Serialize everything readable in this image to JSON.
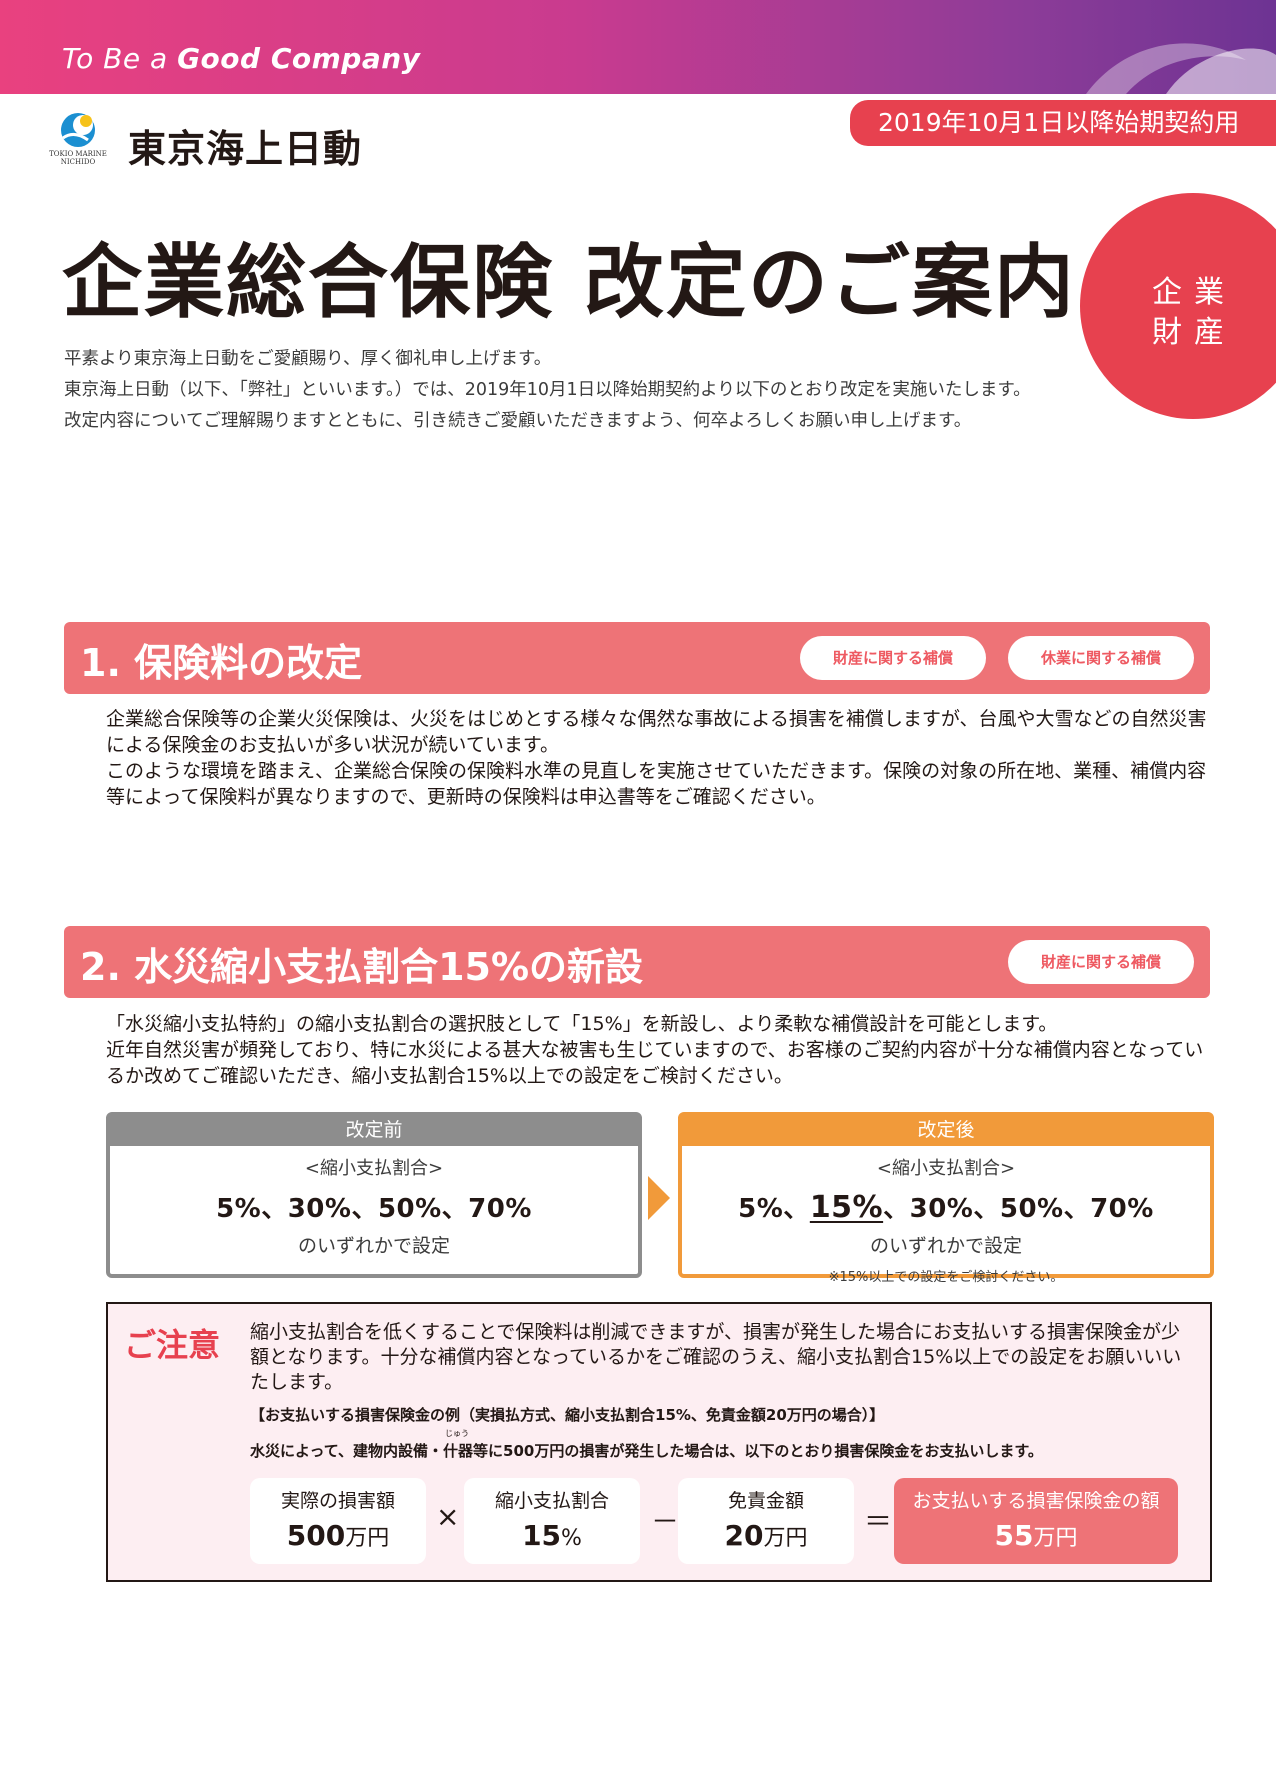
{
  "header": {
    "tagline_prefix": "To Be a ",
    "tagline_bold": "Good Company",
    "brand_name": "東京海上日動",
    "logo_caption_line1": "TOKIO MARINE",
    "logo_caption_line2": "NICHIDO",
    "date_tab": "2019年10月1日以降始期契約用"
  },
  "title": "企業総合保険 改定のご案内",
  "category": {
    "line1": "企業",
    "line2": "財産"
  },
  "intro": [
    "平素より東京海上日動をご愛顧賜り、厚く御礼申し上げます。",
    "東京海上日動（以下、「弊社」といいます。）では、2019年10月1日以降始期契約より以下のとおり改定を実施いたします。",
    "改定内容についてご理解賜りますとともに、引き続きご愛顧いただきますよう、何卒よろしくお願い申し上げます。"
  ],
  "section1": {
    "title": "1. 保険料の改定",
    "tags": [
      "財産に関する補償",
      "休業に関する補償"
    ],
    "body_p1": "企業総合保険等の企業火災保険は、火災をはじめとする様々な偶然な事故による損害を補償しますが、台風や大雪などの自然災害による保険金のお支払いが多い状況が続いています。",
    "body_p2": "このような環境を踏まえ、企業総合保険の保険料水準の見直しを実施させていただきます。保険の対象の所在地、業種、補償内容等によって保険料が異なりますので、更新時の保険料は申込書等をご確認ください。"
  },
  "section2": {
    "title": "2. 水災縮小支払割合15%の新設",
    "tags": [
      "財産に関する補償"
    ],
    "body_p1": "「水災縮小支払特約」の縮小支払割合の選択肢として「15%」を新設し、より柔軟な補償設計を可能とします。",
    "body_p2": "近年自然災害が頻発しており、特に水災による甚大な被害も生じていますので、お客様のご契約内容が十分な補償内容となっているか改めてご確認いただき、縮小支払割合15%以上での設定をご検討ください。"
  },
  "compare": {
    "before": {
      "header": "改定前",
      "sub": "<縮小支払割合>",
      "values": "5%、30%、50%、70%",
      "tail": "のいずれかで設定"
    },
    "after": {
      "header": "改定後",
      "sub": "<縮小支払割合>",
      "values_pre": "5%、",
      "values_hl": "15%",
      "values_post": "、30%、50%、70%",
      "tail": "のいずれかで設定",
      "note": "※15%以上での設定をご検討ください。"
    }
  },
  "caution": {
    "title": "ご注意",
    "text": "縮小支払割合を低くすることで保険料は削減できますが、損害が発生した場合にお支払いする損害保険金が少額となります。十分な補償内容となっているかをご確認のうえ、縮小支払割合15%以上での設定をお願いいいたします。",
    "example_title": "【お支払いする損害保険金の例（実損払方式、縮小支払割合15%、免責金額20万円の場合）】",
    "example_ruby": "じゅう",
    "example_text": "水災によって、建物内設備・什器等に500万円の損害が発生した場合は、以下のとおり損害保険金をお支払いします。",
    "calc": {
      "actual_label": "実際の損害額",
      "actual_value": "500",
      "actual_unit": "万円",
      "ratio_label": "縮小支払割合",
      "ratio_value": "15",
      "ratio_unit": "%",
      "deduct_label": "免責金額",
      "deduct_value": "20",
      "deduct_unit": "万円",
      "result_label": "お支払いする損害保険金の額",
      "result_value": "55",
      "result_unit": "万円",
      "op_times": "×",
      "op_minus": "－",
      "op_eq": "＝"
    }
  },
  "colors": {
    "accent_red": "#e7414f",
    "section_pink": "#ee7377",
    "after_orange": "#f19a3a",
    "before_gray": "#8d8d8d",
    "caution_bg": "#fdeef2"
  }
}
